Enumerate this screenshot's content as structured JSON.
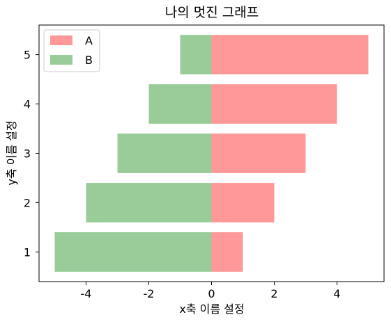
{
  "chart_data": {
    "type": "bar",
    "orientation": "horizontal",
    "title": "나의 멋진 그래프",
    "xlabel": "x축 이름 설정",
    "ylabel": "y축 이름 설정",
    "categories": [
      "1",
      "2",
      "3",
      "4",
      "5"
    ],
    "series": [
      {
        "name": "A",
        "values": [
          1,
          2,
          3,
          4,
          5
        ],
        "color": "#ff9999"
      },
      {
        "name": "B",
        "values": [
          -5,
          -4,
          -3,
          -2,
          -1
        ],
        "color": "#99cc99"
      }
    ],
    "xlim": [
      -5.5,
      5.5
    ],
    "xticks": [
      -4,
      -2,
      0,
      2,
      4
    ],
    "xtick_labels": [
      "-4",
      "-2",
      "0",
      "2",
      "4"
    ],
    "grid": false,
    "legend": "upper-left"
  }
}
